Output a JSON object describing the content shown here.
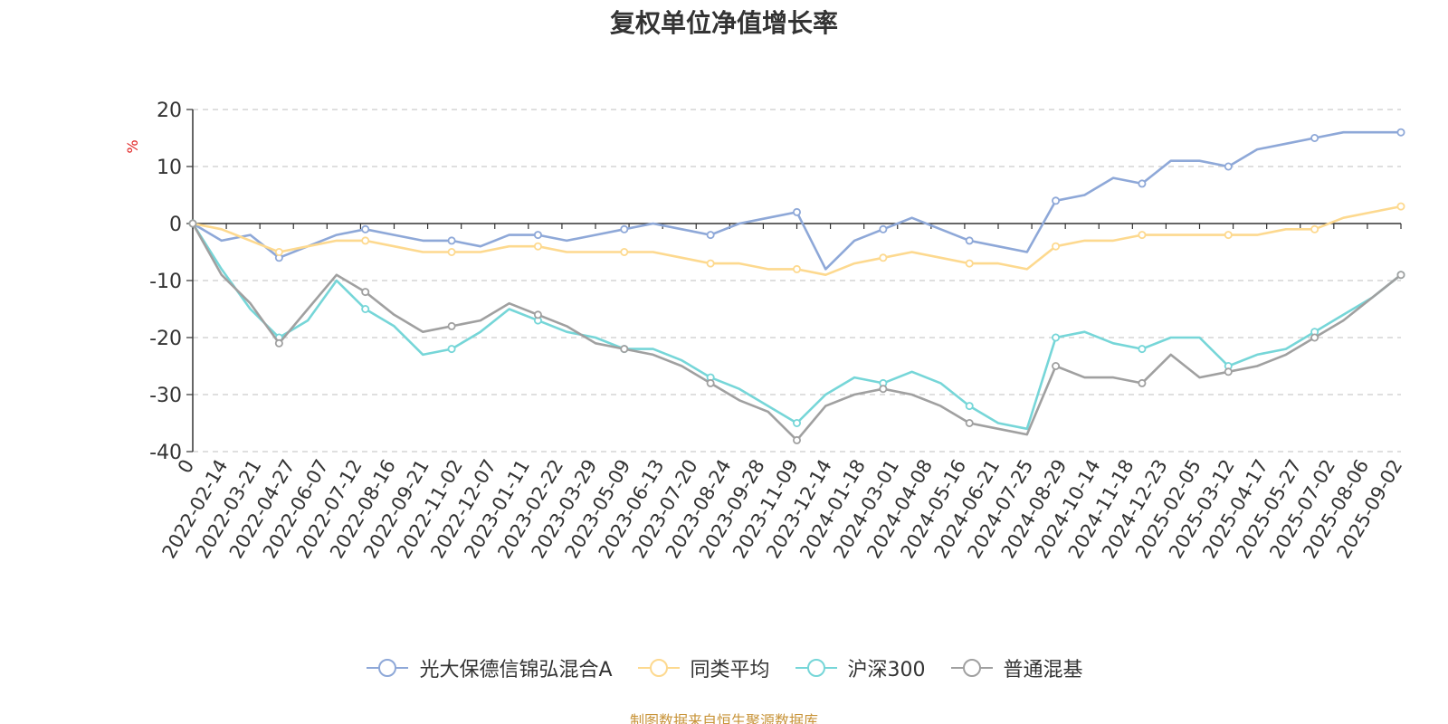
{
  "chart_data": {
    "type": "line",
    "title": "复权单位净值增长率",
    "ylabel": "%",
    "ylim": [
      -40,
      20
    ],
    "yticks": [
      20,
      10,
      0,
      -10,
      -20,
      -30,
      -40
    ],
    "grid": true,
    "legend_position": "bottom",
    "x_tick_labels": [
      "0",
      "2022-02-14",
      "2022-03-21",
      "2022-04-27",
      "2022-06-07",
      "2022-07-12",
      "2022-08-16",
      "2022-09-21",
      "2022-11-02",
      "2022-12-07",
      "2023-01-11",
      "2023-02-22",
      "2023-03-29",
      "2023-05-09",
      "2023-06-13",
      "2023-07-20",
      "2023-08-24",
      "2023-09-28",
      "2023-11-09",
      "2023-12-14",
      "2024-01-18",
      "2024-03-01",
      "2024-04-08",
      "2024-05-16",
      "2024-06-21",
      "2024-07-25",
      "2024-08-29",
      "2024-10-14",
      "2024-11-18",
      "2024-12-23",
      "2025-02-05",
      "2025-03-12",
      "2025-04-17",
      "2025-05-27",
      "2025-07-02",
      "2025-08-06",
      "2025-09-02"
    ],
    "series": [
      {
        "name": "光大保德信锦弘混合A",
        "color": "#8ea8d8",
        "values": [
          0,
          -3,
          -2,
          -6,
          -4,
          -2,
          -1,
          -2,
          -3,
          -3,
          -4,
          -2,
          -2,
          -3,
          -2,
          -1,
          0,
          -1,
          -2,
          0,
          1,
          2,
          -8,
          -3,
          -1,
          1,
          -1,
          -3,
          -4,
          -5,
          4,
          5,
          8,
          7,
          11,
          11,
          10,
          13,
          14,
          15,
          16,
          16,
          16
        ]
      },
      {
        "name": "同类平均",
        "color": "#fdd98f",
        "values": [
          0,
          -1,
          -3,
          -5,
          -4,
          -3,
          -3,
          -4,
          -5,
          -5,
          -5,
          -4,
          -4,
          -5,
          -5,
          -5,
          -5,
          -6,
          -7,
          -7,
          -8,
          -8,
          -9,
          -7,
          -6,
          -5,
          -6,
          -7,
          -7,
          -8,
          -4,
          -3,
          -3,
          -2,
          -2,
          -2,
          -2,
          -2,
          -1,
          -1,
          1,
          2,
          3
        ]
      },
      {
        "name": "沪深300",
        "color": "#76d6d8",
        "values": [
          0,
          -8,
          -15,
          -20,
          -17,
          -10,
          -15,
          -18,
          -23,
          -22,
          -19,
          -15,
          -17,
          -19,
          -20,
          -22,
          -22,
          -24,
          -27,
          -29,
          -32,
          -35,
          -30,
          -27,
          -28,
          -26,
          -28,
          -32,
          -35,
          -36,
          -20,
          -19,
          -21,
          -22,
          -20,
          -20,
          -25,
          -23,
          -22,
          -19,
          -16,
          -13,
          -9
        ]
      },
      {
        "name": "普通混基",
        "color": "#a0a0a0",
        "values": [
          0,
          -9,
          -14,
          -21,
          -15,
          -9,
          -12,
          -16,
          -19,
          -18,
          -17,
          -14,
          -16,
          -18,
          -21,
          -22,
          -23,
          -25,
          -28,
          -31,
          -33,
          -38,
          -32,
          -30,
          -29,
          -30,
          -32,
          -35,
          -36,
          -37,
          -25,
          -27,
          -27,
          -28,
          -23,
          -27,
          -26,
          -25,
          -23,
          -20,
          -17,
          -13,
          -9
        ]
      }
    ]
  },
  "footer": {
    "source": "制图数据来自恒生聚源数据库"
  }
}
